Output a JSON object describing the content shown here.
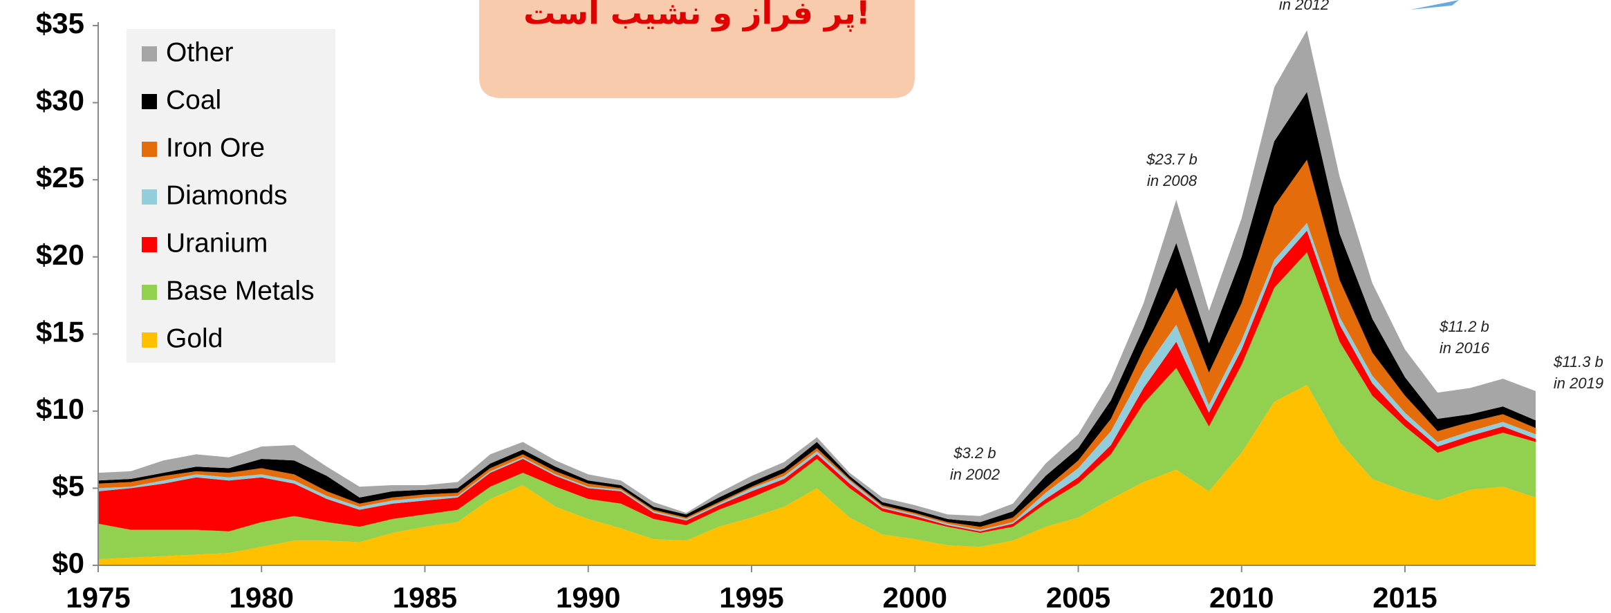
{
  "chart_data": {
    "type": "stacked_area",
    "banner": "پر فراز و نشیب است!",
    "annotations": [
      [
        "in 2012"
      ],
      [
        "$23.7 b",
        "in 2008"
      ],
      [
        "$3.2 b",
        "in 2002"
      ],
      [
        "$11.2 b",
        "in 2016"
      ],
      [
        "$11.3 b",
        "in 2019"
      ]
    ],
    "x": [
      1975,
      1976,
      1977,
      1978,
      1979,
      1980,
      1981,
      1982,
      1983,
      1984,
      1985,
      1986,
      1987,
      1988,
      1989,
      1990,
      1991,
      1992,
      1993,
      1994,
      1995,
      1996,
      1997,
      1998,
      1999,
      2000,
      2001,
      2002,
      2003,
      2004,
      2005,
      2006,
      2007,
      2008,
      2009,
      2010,
      2011,
      2012,
      2013,
      2014,
      2015,
      2016,
      2017,
      2018,
      2019
    ],
    "xlim": [
      1975,
      2019
    ],
    "xticks": [
      1975,
      1980,
      1985,
      1990,
      1995,
      2000,
      2005,
      2010,
      2015
    ],
    "ylim": [
      0,
      35
    ],
    "yticks": [
      {
        "value": 0,
        "label": "$0"
      },
      {
        "value": 5,
        "label": "$5"
      },
      {
        "value": 10,
        "label": "$10"
      },
      {
        "value": 15,
        "label": "$15"
      },
      {
        "value": 20,
        "label": "$20"
      },
      {
        "value": 25,
        "label": "$25"
      },
      {
        "value": 30,
        "label": "$30"
      },
      {
        "value": 35,
        "label": "$35"
      }
    ],
    "legend": "upper left",
    "series": [
      {
        "name": "Gold",
        "color": "#FFC000",
        "values": [
          0.4,
          0.5,
          0.6,
          0.7,
          0.8,
          1.2,
          1.6,
          1.6,
          1.5,
          2.1,
          2.5,
          2.8,
          4.3,
          5.2,
          3.8,
          3.0,
          2.4,
          1.7,
          1.6,
          2.5,
          3.1,
          3.8,
          5.0,
          3.1,
          2.0,
          1.7,
          1.3,
          1.2,
          1.6,
          2.5,
          3.1,
          4.3,
          5.4,
          6.2,
          4.8,
          7.3,
          10.6,
          11.7,
          8.0,
          5.6,
          4.8,
          4.2,
          4.9,
          5.1,
          4.4
        ]
      },
      {
        "name": "Base Metals",
        "color": "#92D050",
        "values": [
          2.3,
          1.8,
          1.7,
          1.6,
          1.4,
          1.6,
          1.6,
          1.2,
          1.0,
          0.9,
          0.8,
          0.8,
          0.8,
          0.8,
          1.3,
          1.3,
          1.6,
          1.3,
          1.0,
          1.1,
          1.3,
          1.5,
          1.9,
          1.9,
          1.5,
          1.3,
          1.2,
          0.9,
          0.9,
          1.5,
          2.2,
          2.9,
          5.1,
          6.6,
          4.2,
          5.7,
          7.4,
          8.6,
          6.5,
          5.4,
          4.2,
          3.1,
          3.1,
          3.5,
          3.6
        ]
      },
      {
        "name": "Uranium",
        "color": "#FF0000",
        "values": [
          2.1,
          2.7,
          3.0,
          3.4,
          3.3,
          2.9,
          2.1,
          1.5,
          1.1,
          1.0,
          0.9,
          0.8,
          0.9,
          0.9,
          0.7,
          0.7,
          0.8,
          0.4,
          0.3,
          0.3,
          0.4,
          0.3,
          0.3,
          0.3,
          0.2,
          0.2,
          0.1,
          0.1,
          0.2,
          0.3,
          0.4,
          0.6,
          1.0,
          1.7,
          0.9,
          1.0,
          1.3,
          1.4,
          1.1,
          0.8,
          0.5,
          0.4,
          0.4,
          0.4,
          0.2
        ]
      },
      {
        "name": "Diamonds",
        "color": "#92CDDC",
        "values": [
          0.2,
          0.1,
          0.2,
          0.2,
          0.2,
          0.2,
          0.2,
          0.2,
          0.2,
          0.2,
          0.2,
          0.1,
          0.1,
          0.1,
          0.1,
          0.1,
          0.1,
          0.1,
          0.1,
          0.1,
          0.2,
          0.2,
          0.2,
          0.2,
          0.1,
          0.1,
          0.1,
          0.1,
          0.1,
          0.4,
          0.6,
          0.9,
          1.1,
          1.1,
          0.5,
          0.6,
          0.5,
          0.5,
          0.5,
          0.5,
          0.4,
          0.3,
          0.3,
          0.3,
          0.3
        ]
      },
      {
        "name": "Iron Ore",
        "color": "#E46C0A",
        "values": [
          0.3,
          0.3,
          0.3,
          0.2,
          0.3,
          0.4,
          0.4,
          0.3,
          0.2,
          0.2,
          0.2,
          0.2,
          0.2,
          0.2,
          0.2,
          0.2,
          0.1,
          0.1,
          0.1,
          0.1,
          0.1,
          0.2,
          0.2,
          0.1,
          0.1,
          0.1,
          0.1,
          0.2,
          0.3,
          0.3,
          0.5,
          0.8,
          1.4,
          2.4,
          2.1,
          2.4,
          3.5,
          4.1,
          2.4,
          1.5,
          1.1,
          0.7,
          0.6,
          0.5,
          0.4
        ]
      },
      {
        "name": "Coal",
        "color": "#000000",
        "values": [
          0.2,
          0.2,
          0.2,
          0.3,
          0.3,
          0.6,
          0.9,
          1.0,
          0.4,
          0.4,
          0.3,
          0.3,
          0.3,
          0.3,
          0.3,
          0.2,
          0.2,
          0.2,
          0.2,
          0.3,
          0.3,
          0.3,
          0.4,
          0.2,
          0.2,
          0.2,
          0.2,
          0.3,
          0.4,
          0.8,
          0.8,
          1.2,
          1.4,
          2.9,
          1.9,
          3.0,
          4.2,
          4.4,
          3.0,
          2.2,
          1.2,
          0.8,
          0.5,
          0.5,
          0.5
        ]
      },
      {
        "name": "Other",
        "color": "#A6A6A6",
        "values": [
          0.5,
          0.5,
          0.8,
          0.8,
          0.7,
          0.8,
          1.0,
          0.6,
          0.7,
          0.4,
          0.3,
          0.4,
          0.6,
          0.5,
          0.4,
          0.4,
          0.3,
          0.3,
          0.1,
          0.3,
          0.4,
          0.4,
          0.3,
          0.2,
          0.3,
          0.3,
          0.3,
          0.4,
          0.5,
          0.8,
          0.9,
          1.3,
          1.6,
          2.8,
          2.1,
          2.5,
          3.5,
          4.0,
          3.7,
          2.3,
          1.8,
          1.7,
          1.7,
          1.8,
          1.9
        ]
      }
    ]
  }
}
